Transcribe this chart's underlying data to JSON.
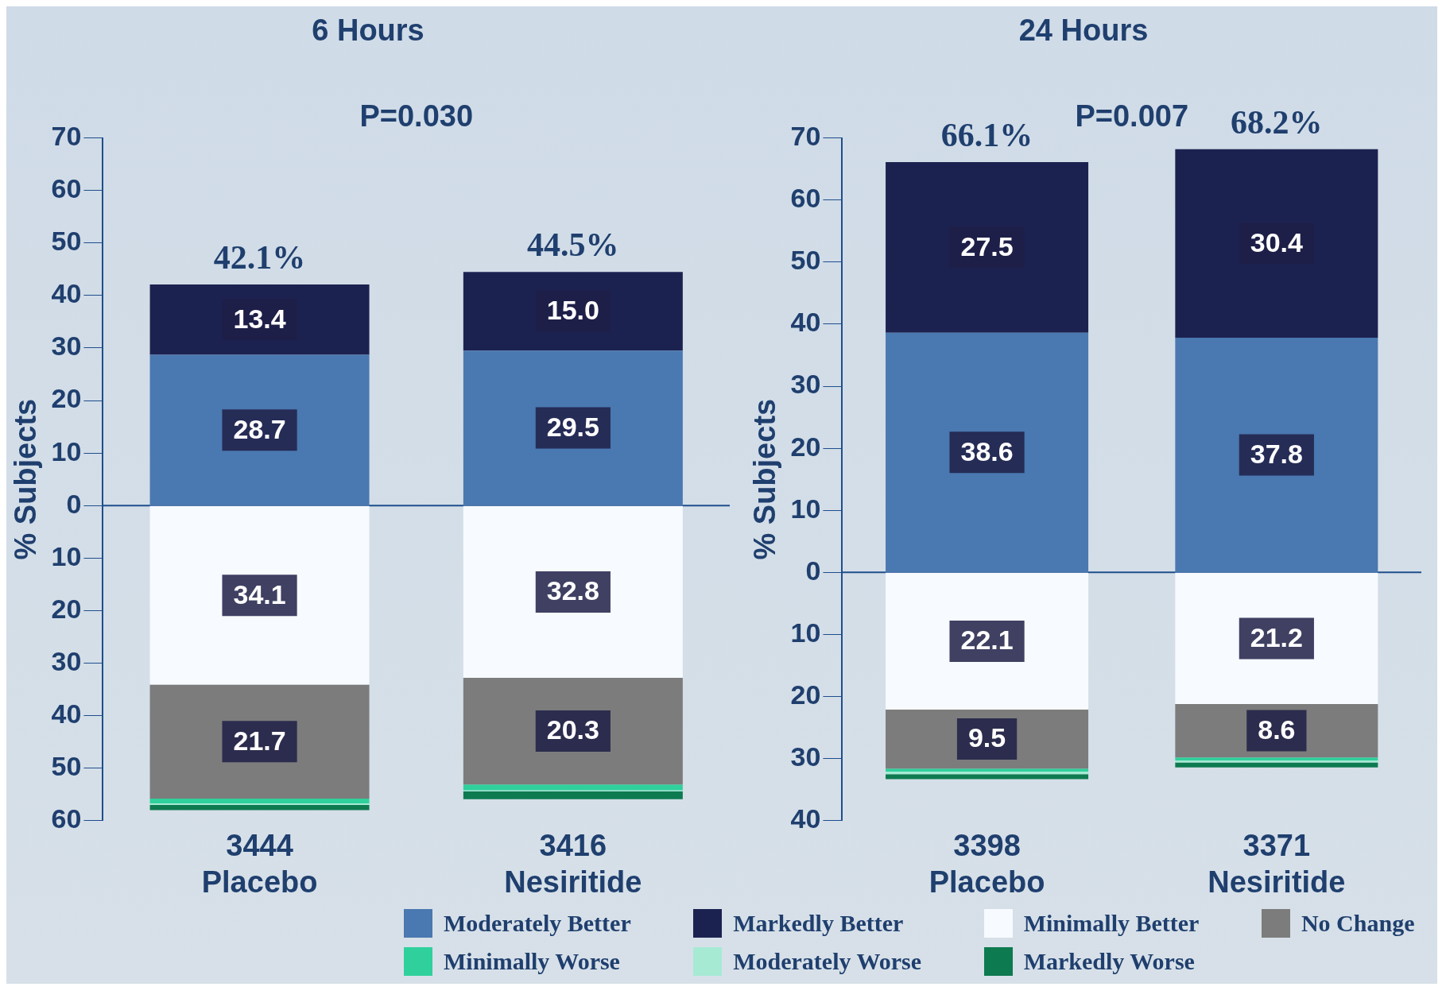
{
  "chart_data": [
    {
      "type": "bar",
      "title": "6 Hours",
      "ylabel": "% Subjects",
      "categories": [
        "3444\nPlacebo",
        "3416\nNesiritide"
      ],
      "ylim": [
        -60,
        70
      ],
      "yticks": [
        {
          "value": -60,
          "label": "60"
        },
        {
          "value": -50,
          "label": "50"
        },
        {
          "value": -40,
          "label": "40"
        },
        {
          "value": -30,
          "label": "30"
        },
        {
          "value": -20,
          "label": "20"
        },
        {
          "value": -10,
          "label": "10"
        },
        0,
        10,
        20,
        30,
        40,
        50,
        60,
        70
      ],
      "series": [
        {
          "name": "Moderately Better",
          "color": "#4a78b0",
          "base": [
            0,
            0
          ],
          "values": [
            28.7,
            29.5
          ],
          "value_labels": [
            "28.7",
            "29.5"
          ]
        },
        {
          "name": "Markedly Better",
          "color": "#1c2250",
          "base": [
            28.7,
            29.5
          ],
          "values": [
            13.4,
            15.0
          ],
          "value_labels": [
            "13.4",
            "15.0"
          ]
        },
        {
          "name": "Minimally Better",
          "color": "#f7faff",
          "base": [
            -34.1,
            -32.8
          ],
          "values": [
            34.1,
            32.8
          ],
          "value_labels": [
            "34.1",
            "32.8"
          ]
        },
        {
          "name": "No Change",
          "color": "#7c7c7c",
          "base": [
            -55.8,
            -53.1
          ],
          "values": [
            21.7,
            20.3
          ],
          "value_labels": [
            "21.7",
            "20.3"
          ]
        },
        {
          "name": "Minimally Worse",
          "color": "#2fd09c",
          "base": [
            -56.7,
            -54.2
          ],
          "values": [
            0.9,
            1.1
          ]
        },
        {
          "name": "Moderately Worse",
          "color": "#a6ead4",
          "base": [
            -57.0,
            -54.4
          ],
          "values": [
            0.3,
            0.2
          ]
        },
        {
          "name": "Markedly Worse",
          "color": "#0e7a50",
          "base": [
            -58.0,
            -55.9
          ],
          "values": [
            1.0,
            1.5
          ]
        }
      ],
      "ref_lines": [
        {
          "axis": "y",
          "value": 0,
          "color": "#1f4e8c"
        }
      ],
      "annotations": [
        "P=0.030",
        {
          "text": "42.1%",
          "x": "3444\nPlacebo",
          "y": 42.1
        },
        {
          "text": "44.5%",
          "x": "3416\nNesiritide",
          "y": 44.5
        }
      ],
      "legend": "bottom"
    },
    {
      "type": "bar",
      "title": "24 Hours",
      "ylabel": "% Subjects",
      "categories": [
        "3398\nPlacebo",
        "3371\nNesiritide"
      ],
      "ylim": [
        -40,
        70
      ],
      "yticks": [
        {
          "value": -40,
          "label": "40"
        },
        {
          "value": -30,
          "label": "30"
        },
        {
          "value": -20,
          "label": "20"
        },
        {
          "value": -10,
          "label": "10"
        },
        0,
        10,
        20,
        30,
        40,
        50,
        60,
        70
      ],
      "series": [
        {
          "color": "#4a78b0",
          "base": [
            0,
            0
          ],
          "values": [
            38.6,
            37.8
          ],
          "value_labels": [
            "38.6",
            "37.8"
          ]
        },
        {
          "color": "#1c2250",
          "base": [
            38.6,
            37.8
          ],
          "values": [
            27.5,
            30.4
          ],
          "value_labels": [
            "27.5",
            "30.4"
          ]
        },
        {
          "color": "#f7faff",
          "base": [
            -22.1,
            -21.2
          ],
          "values": [
            22.1,
            21.2
          ],
          "value_labels": [
            "22.1",
            "21.2"
          ]
        },
        {
          "color": "#7c7c7c",
          "base": [
            -31.6,
            -29.8
          ],
          "values": [
            9.5,
            8.6
          ],
          "value_labels": [
            "9.5",
            "8.6"
          ]
        },
        {
          "color": "#2fd09c",
          "base": [
            -32.1,
            -30.3
          ],
          "values": [
            0.5,
            0.5
          ]
        },
        {
          "color": "#a6ead4",
          "base": [
            -32.5,
            -30.6
          ],
          "values": [
            0.4,
            0.3
          ]
        },
        {
          "color": "#0e7a50",
          "base": [
            -33.3,
            -31.4
          ],
          "values": [
            0.8,
            0.8
          ]
        }
      ],
      "ref_lines": [
        {
          "axis": "y",
          "value": 0,
          "color": "#1f4e8c"
        }
      ],
      "annotations": [
        "P=0.007",
        {
          "text": "66.1%",
          "x": "3398\nPlacebo",
          "y": 66.1
        },
        {
          "text": "68.2%",
          "x": "3371\nNesiritide",
          "y": 68.2
        }
      ]
    }
  ]
}
